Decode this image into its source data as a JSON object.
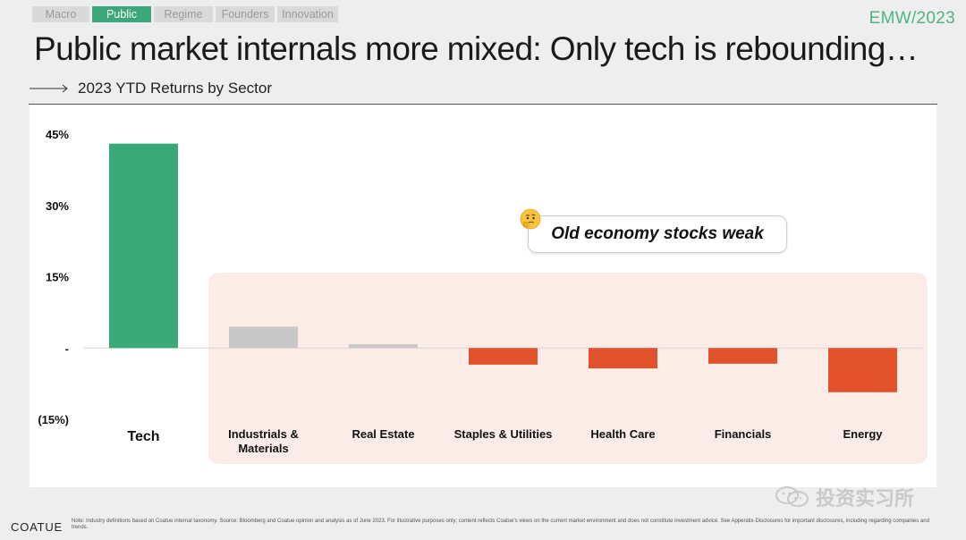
{
  "tabs": [
    {
      "label": "Macro",
      "active": false
    },
    {
      "label": "Public",
      "active": true
    },
    {
      "label": "Regime",
      "active": false
    },
    {
      "label": "Founders",
      "active": false
    },
    {
      "label": "Innovation",
      "active": false
    }
  ],
  "brand": {
    "left": "EMW",
    "right": "2023"
  },
  "title": "Public market internals more mixed: Only tech is rebounding…",
  "subtitle": "2023 YTD Returns by Sector",
  "callout": {
    "text": "Old economy stocks weak",
    "icon": "thinking-face-icon"
  },
  "logo": "COATUE",
  "note": "Note: Industry definitions based on Coatue internal taxonomy. Source: Bloomberg and Coatue opinion and analysis as of June 2023. For illustrative purposes only; content reflects Coatue's views on the current market environment and does not constitute investment advice. See Appendix-Disclosures for important disclosures, including regarding companies and trends.",
  "watermark": "投资实习所",
  "colors": {
    "accent": "#3aa878",
    "tech_bar": "#3aa878",
    "neutral_bar": "#c8c8c8",
    "negative_bar": "#e0512c",
    "highlight_bg": "#fbece8"
  },
  "chart_data": {
    "type": "bar",
    "title": "2023 YTD Returns by Sector",
    "categories": [
      "Tech",
      "Industrials & Materials",
      "Real Estate",
      "Staples & Utilities",
      "Health Care",
      "Financials",
      "Energy"
    ],
    "values": [
      43,
      4.5,
      0.8,
      -3.5,
      -4.3,
      -3.3,
      -9.3
    ],
    "bar_colors": [
      "#3aa878",
      "#c8c8c8",
      "#c8c8c8",
      "#e0512c",
      "#e0512c",
      "#e0512c",
      "#e0512c"
    ],
    "ylim": [
      -15,
      45
    ],
    "yticks": [
      45,
      30,
      15,
      0,
      -15
    ],
    "ytick_labels": [
      "45%",
      "30%",
      "15%",
      "-",
      "(15%)"
    ],
    "grid": false,
    "highlight_categories": [
      "Industrials & Materials",
      "Real Estate",
      "Staples & Utilities",
      "Health Care",
      "Financials",
      "Energy"
    ]
  }
}
